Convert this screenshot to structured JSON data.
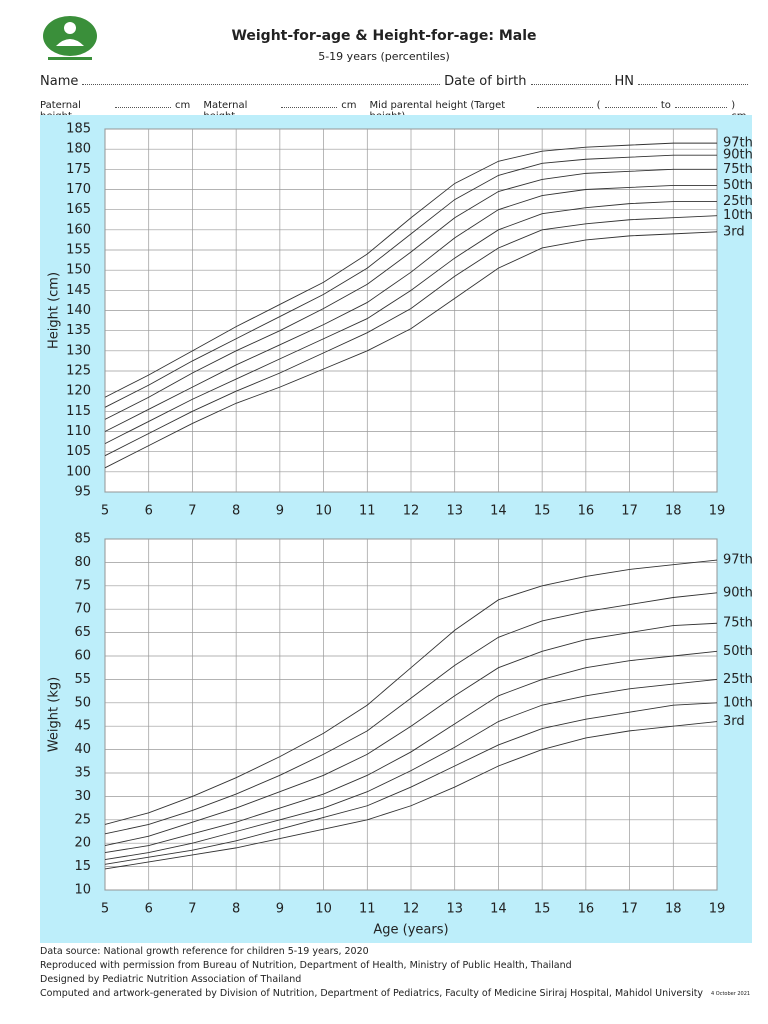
{
  "header": {
    "title": "Weight-for-age & Height-for-age: Male",
    "subtitle": "5-19 years (percentiles)"
  },
  "form": {
    "name": "Name",
    "dob": "Date of birth",
    "hn": "HN",
    "paternal": "Paternal height",
    "paternal_unit": "cm",
    "maternal": "Maternal height",
    "maternal_unit": "cm",
    "mid": "Mid parental height (Target height)",
    "open": "(",
    "to": "to",
    "close": ") cm"
  },
  "chart_data": [
    {
      "type": "line",
      "y_label": "Height (cm)",
      "x": [
        5,
        6,
        7,
        8,
        9,
        10,
        11,
        12,
        13,
        14,
        15,
        16,
        17,
        18,
        19
      ],
      "xlim": [
        5,
        19
      ],
      "xticks": [
        5,
        6,
        7,
        8,
        9,
        10,
        11,
        12,
        13,
        14,
        15,
        16,
        17,
        18,
        19
      ],
      "ylim": [
        95,
        185
      ],
      "yticks": [
        95,
        100,
        105,
        110,
        115,
        120,
        125,
        130,
        135,
        140,
        145,
        150,
        155,
        160,
        165,
        170,
        175,
        180,
        185
      ],
      "grid": true,
      "series": [
        {
          "name": "97th",
          "color": "#333333",
          "values": [
            118.5,
            124,
            130,
            136,
            141.5,
            147,
            154,
            163,
            171.5,
            177,
            179.5,
            180.5,
            181,
            181.5,
            181.5
          ]
        },
        {
          "name": "90th",
          "color": "#333333",
          "values": [
            116,
            121.5,
            127.5,
            133,
            138.5,
            144,
            150.5,
            159,
            167.5,
            173.5,
            176.5,
            177.5,
            178,
            178.5,
            178.5
          ]
        },
        {
          "name": "75th",
          "color": "#333333",
          "values": [
            113,
            118.5,
            124.5,
            130,
            135,
            140.5,
            146.5,
            154.5,
            163,
            169.5,
            172.5,
            174,
            174.5,
            175,
            175
          ]
        },
        {
          "name": "50th",
          "color": "#333333",
          "values": [
            110,
            115.5,
            121,
            126.5,
            131.5,
            136.5,
            142,
            149.5,
            158,
            165,
            168.5,
            170,
            170.5,
            171,
            171
          ]
        },
        {
          "name": "25th",
          "color": "#333333",
          "values": [
            107,
            112.5,
            118,
            123,
            128,
            133,
            138,
            145,
            153,
            160,
            164,
            165.5,
            166.5,
            167,
            167
          ]
        },
        {
          "name": "10th",
          "color": "#333333",
          "values": [
            104,
            109.5,
            115,
            120,
            124.5,
            129.5,
            134.5,
            140.5,
            148.5,
            155.5,
            160,
            161.5,
            162.5,
            163,
            163.5
          ]
        },
        {
          "name": "3rd",
          "color": "#333333",
          "values": [
            101,
            106.5,
            112,
            117,
            121,
            125.5,
            130,
            135.5,
            143,
            150.5,
            155.5,
            157.5,
            158.5,
            159,
            159.5
          ]
        }
      ]
    },
    {
      "type": "line",
      "y_label": "Weight (kg)",
      "x_label": "Age (years)",
      "x": [
        5,
        6,
        7,
        8,
        9,
        10,
        11,
        12,
        13,
        14,
        15,
        16,
        17,
        18,
        19
      ],
      "xlim": [
        5,
        19
      ],
      "xticks": [
        5,
        6,
        7,
        8,
        9,
        10,
        11,
        12,
        13,
        14,
        15,
        16,
        17,
        18,
        19
      ],
      "ylim": [
        10,
        85
      ],
      "yticks": [
        10,
        15,
        20,
        25,
        30,
        35,
        40,
        45,
        50,
        55,
        60,
        65,
        70,
        75,
        80,
        85
      ],
      "grid": true,
      "series": [
        {
          "name": "97th",
          "color": "#333333",
          "values": [
            24,
            26.5,
            30,
            34,
            38.5,
            43.5,
            49.5,
            57.5,
            65.5,
            72,
            75,
            77,
            78.5,
            79.5,
            80.5
          ]
        },
        {
          "name": "90th",
          "color": "#333333",
          "values": [
            22,
            24,
            27,
            30.5,
            34.5,
            39,
            44,
            51,
            58,
            64,
            67.5,
            69.5,
            71,
            72.5,
            73.5
          ]
        },
        {
          "name": "75th",
          "color": "#333333",
          "values": [
            19.5,
            21.5,
            24.5,
            27.5,
            31,
            34.5,
            39,
            45,
            51.5,
            57.5,
            61,
            63.5,
            65,
            66.5,
            67
          ]
        },
        {
          "name": "50th",
          "color": "#333333",
          "values": [
            18,
            19.5,
            22,
            24.5,
            27.5,
            30.5,
            34.5,
            39.5,
            45.5,
            51.5,
            55,
            57.5,
            59,
            60,
            61
          ]
        },
        {
          "name": "25th",
          "color": "#333333",
          "values": [
            16.5,
            18,
            20,
            22.5,
            25,
            27.5,
            31,
            35.5,
            40.5,
            46,
            49.5,
            51.5,
            53,
            54,
            55
          ]
        },
        {
          "name": "10th",
          "color": "#333333",
          "values": [
            15.5,
            17,
            18.5,
            20.5,
            23,
            25.5,
            28,
            32,
            36.5,
            41,
            44.5,
            46.5,
            48,
            49.5,
            50
          ]
        },
        {
          "name": "3rd",
          "color": "#333333",
          "values": [
            14.5,
            16,
            17.5,
            19,
            21,
            23,
            25,
            28,
            32,
            36.5,
            40,
            42.5,
            44,
            45,
            46
          ]
        }
      ]
    }
  ],
  "footer": {
    "lines": [
      "Data source: National growth reference for children 5-19 years, 2020",
      "Reproduced with permission from Bureau of Nutrition, Department of Health, Ministry of Public Health, Thailand",
      "Designed by Pediatric Nutrition Association of Thailand",
      "Computed and artwork-generated by Division of Nutrition, Department of Pediatrics, Faculty of Medicine Siriraj Hospital, Mahidol University"
    ],
    "date": "4 October 2021"
  }
}
